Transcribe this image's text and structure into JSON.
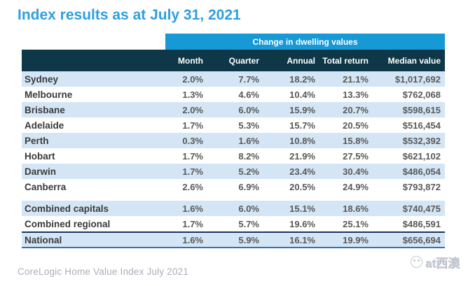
{
  "page": {
    "title": "Index results as at July 31, 2021",
    "footer": "CoreLogic Home Value Index July 2021",
    "watermark": "at西澳"
  },
  "colors": {
    "title_blue": "#2E9FE0",
    "banner_blue": "#1799D6",
    "header_navy": "#0E3747",
    "row_stripe_blue": "#D4E6F5",
    "national_top_border": "#17375D",
    "national_bottom_border": "#2E75B6",
    "footer_gray": "#A9AEB9"
  },
  "table": {
    "banner": "Change in dwelling values",
    "columns": [
      "",
      "Month",
      "Quarter",
      "Annual",
      "Total return",
      "Median value"
    ],
    "capital_rows": [
      {
        "label": "Sydney",
        "month": "2.0%",
        "quarter": "7.7%",
        "annual": "18.2%",
        "total_return": "21.1%",
        "median_value": "$1,017,692"
      },
      {
        "label": "Melbourne",
        "month": "1.3%",
        "quarter": "4.6%",
        "annual": "10.4%",
        "total_return": "13.3%",
        "median_value": "$762,068"
      },
      {
        "label": "Brisbane",
        "month": "2.0%",
        "quarter": "6.0%",
        "annual": "15.9%",
        "total_return": "20.7%",
        "median_value": "$598,615"
      },
      {
        "label": "Adelaide",
        "month": "1.7%",
        "quarter": "5.3%",
        "annual": "15.7%",
        "total_return": "20.5%",
        "median_value": "$516,454"
      },
      {
        "label": "Perth",
        "month": "0.3%",
        "quarter": "1.6%",
        "annual": "10.8%",
        "total_return": "15.8%",
        "median_value": "$532,392"
      },
      {
        "label": "Hobart",
        "month": "1.7%",
        "quarter": "8.2%",
        "annual": "21.9%",
        "total_return": "27.5%",
        "median_value": "$621,102"
      },
      {
        "label": "Darwin",
        "month": "1.7%",
        "quarter": "5.2%",
        "annual": "23.4%",
        "total_return": "30.4%",
        "median_value": "$486,054"
      },
      {
        "label": "Canberra",
        "month": "2.6%",
        "quarter": "6.9%",
        "annual": "20.5%",
        "total_return": "24.9%",
        "median_value": "$793,872"
      }
    ],
    "summary_rows": [
      {
        "label": "Combined capitals",
        "month": "1.6%",
        "quarter": "6.0%",
        "annual": "15.1%",
        "total_return": "18.6%",
        "median_value": "$740,475"
      },
      {
        "label": "Combined regional",
        "month": "1.7%",
        "quarter": "5.7%",
        "annual": "19.6%",
        "total_return": "25.1%",
        "median_value": "$486,591"
      },
      {
        "label": "National",
        "month": "1.6%",
        "quarter": "5.9%",
        "annual": "16.1%",
        "total_return": "19.9%",
        "median_value": "$656,694"
      }
    ]
  },
  "chart_data": {
    "type": "table",
    "title": "Index results as at July 31, 2021",
    "group_header": "Change in dwelling values",
    "columns": [
      "Month",
      "Quarter",
      "Annual",
      "Total return",
      "Median value"
    ],
    "rows": [
      [
        "Sydney",
        2.0,
        7.7,
        18.2,
        21.1,
        1017692
      ],
      [
        "Melbourne",
        1.3,
        4.6,
        10.4,
        13.3,
        762068
      ],
      [
        "Brisbane",
        2.0,
        6.0,
        15.9,
        20.7,
        598615
      ],
      [
        "Adelaide",
        1.7,
        5.3,
        15.7,
        20.5,
        516454
      ],
      [
        "Perth",
        0.3,
        1.6,
        10.8,
        15.8,
        532392
      ],
      [
        "Hobart",
        1.7,
        8.2,
        21.9,
        27.5,
        621102
      ],
      [
        "Darwin",
        1.7,
        5.2,
        23.4,
        30.4,
        486054
      ],
      [
        "Canberra",
        2.6,
        6.9,
        20.5,
        24.9,
        793872
      ],
      [
        "Combined capitals",
        1.6,
        6.0,
        15.1,
        18.6,
        740475
      ],
      [
        "Combined regional",
        1.7,
        5.7,
        19.6,
        25.1,
        486591
      ],
      [
        "National",
        1.6,
        5.9,
        16.1,
        19.9,
        656694
      ]
    ],
    "units": {
      "month_quarter_annual_total": "percent",
      "median_value": "AUD"
    }
  }
}
